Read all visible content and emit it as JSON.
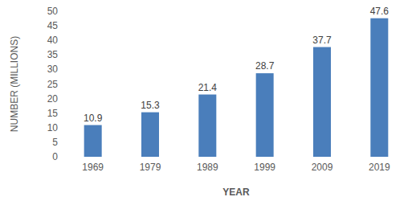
{
  "chart_data": {
    "type": "bar",
    "x_label": "YEAR",
    "y_label": "NUMBER (MILLIONS)",
    "categories": [
      "1969",
      "1979",
      "1989",
      "1999",
      "2009",
      "2019"
    ],
    "values": [
      10.9,
      15.3,
      21.4,
      28.7,
      37.7,
      47.6
    ],
    "color": "#4a7ebb",
    "ylim": [
      0,
      50
    ],
    "yticks": [
      0,
      5,
      10,
      15,
      20,
      25,
      30,
      35,
      40,
      45,
      50
    ],
    "grid": false,
    "data_labels": true
  }
}
